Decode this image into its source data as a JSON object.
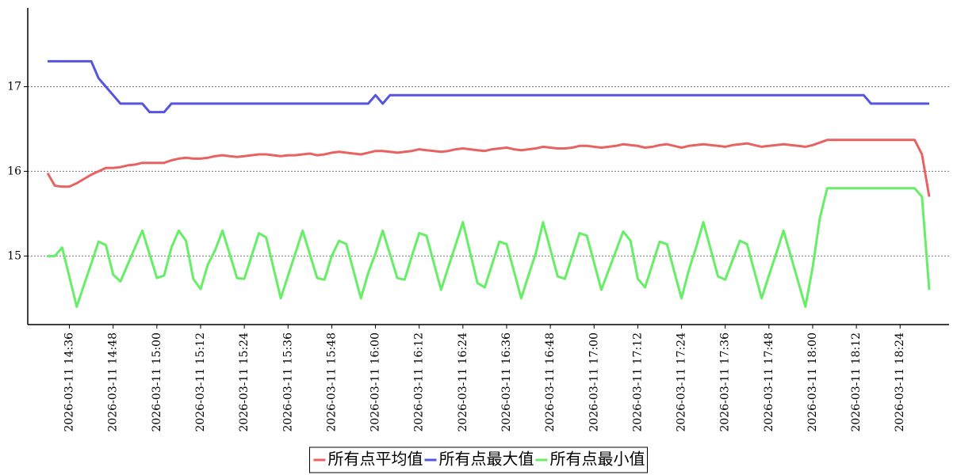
{
  "chart_data": {
    "type": "line",
    "x": [
      "2026-03-11 14:30",
      "2026-03-11 14:32",
      "2026-03-11 14:34",
      "2026-03-11 14:36",
      "2026-03-11 14:38",
      "2026-03-11 14:40",
      "2026-03-11 14:42",
      "2026-03-11 14:44",
      "2026-03-11 14:46",
      "2026-03-11 14:48",
      "2026-03-11 14:50",
      "2026-03-11 14:52",
      "2026-03-11 14:54",
      "2026-03-11 14:56",
      "2026-03-11 14:58",
      "2026-03-11 15:00",
      "2026-03-11 15:02",
      "2026-03-11 15:04",
      "2026-03-11 15:06",
      "2026-03-11 15:08",
      "2026-03-11 15:10",
      "2026-03-11 15:12",
      "2026-03-11 15:14",
      "2026-03-11 15:16",
      "2026-03-11 15:18",
      "2026-03-11 15:20",
      "2026-03-11 15:22",
      "2026-03-11 15:24",
      "2026-03-11 15:26",
      "2026-03-11 15:28",
      "2026-03-11 15:30",
      "2026-03-11 15:32",
      "2026-03-11 15:34",
      "2026-03-11 15:36",
      "2026-03-11 15:38",
      "2026-03-11 15:40",
      "2026-03-11 15:42",
      "2026-03-11 15:44",
      "2026-03-11 15:46",
      "2026-03-11 15:48",
      "2026-03-11 15:50",
      "2026-03-11 15:52",
      "2026-03-11 15:54",
      "2026-03-11 15:56",
      "2026-03-11 15:58",
      "2026-03-11 16:00",
      "2026-03-11 16:02",
      "2026-03-11 16:04",
      "2026-03-11 16:06",
      "2026-03-11 16:08",
      "2026-03-11 16:10",
      "2026-03-11 16:12",
      "2026-03-11 16:14",
      "2026-03-11 16:16",
      "2026-03-11 16:18",
      "2026-03-11 16:20",
      "2026-03-11 16:22",
      "2026-03-11 16:24",
      "2026-03-11 16:26",
      "2026-03-11 16:28",
      "2026-03-11 16:30",
      "2026-03-11 16:32",
      "2026-03-11 16:34",
      "2026-03-11 16:36",
      "2026-03-11 16:38",
      "2026-03-11 16:40",
      "2026-03-11 16:42",
      "2026-03-11 16:44",
      "2026-03-11 16:46",
      "2026-03-11 16:48",
      "2026-03-11 16:50",
      "2026-03-11 16:52",
      "2026-03-11 16:54",
      "2026-03-11 16:56",
      "2026-03-11 16:58",
      "2026-03-11 17:00",
      "2026-03-11 17:02",
      "2026-03-11 17:04",
      "2026-03-11 17:06",
      "2026-03-11 17:08",
      "2026-03-11 17:10",
      "2026-03-11 17:12",
      "2026-03-11 17:14",
      "2026-03-11 17:16",
      "2026-03-11 17:18",
      "2026-03-11 17:20",
      "2026-03-11 17:22",
      "2026-03-11 17:24",
      "2026-03-11 17:26",
      "2026-03-11 17:28",
      "2026-03-11 17:30",
      "2026-03-11 17:32",
      "2026-03-11 17:34",
      "2026-03-11 17:36",
      "2026-03-11 17:38",
      "2026-03-11 17:40",
      "2026-03-11 17:42",
      "2026-03-11 17:44",
      "2026-03-11 17:46",
      "2026-03-11 17:48",
      "2026-03-11 17:50",
      "2026-03-11 17:52",
      "2026-03-11 17:54",
      "2026-03-11 17:56",
      "2026-03-11 17:58",
      "2026-03-11 18:00",
      "2026-03-11 18:02",
      "2026-03-11 18:04",
      "2026-03-11 18:06",
      "2026-03-11 18:08",
      "2026-03-11 18:10",
      "2026-03-11 18:12",
      "2026-03-11 18:14",
      "2026-03-11 18:16",
      "2026-03-11 18:18",
      "2026-03-11 18:20",
      "2026-03-11 18:22",
      "2026-03-11 18:24",
      "2026-03-11 18:26",
      "2026-03-11 18:28",
      "2026-03-11 18:30",
      "2026-03-11 18:32"
    ],
    "xticks": [
      "2026-03-11 14:36",
      "2026-03-11 14:48",
      "2026-03-11 15:00",
      "2026-03-11 15:12",
      "2026-03-11 15:24",
      "2026-03-11 15:36",
      "2026-03-11 15:48",
      "2026-03-11 16:00",
      "2026-03-11 16:12",
      "2026-03-11 16:24",
      "2026-03-11 16:36",
      "2026-03-11 16:48",
      "2026-03-11 17:00",
      "2026-03-11 17:12",
      "2026-03-11 17:24",
      "2026-03-11 17:36",
      "2026-03-11 17:48",
      "2026-03-11 18:00",
      "2026-03-11 18:12",
      "2026-03-11 18:24"
    ],
    "series": [
      {
        "name": "所有点平均值",
        "color": "#e86262",
        "values": [
          15.98,
          15.83,
          15.82,
          15.82,
          15.86,
          15.91,
          15.96,
          16.0,
          16.04,
          16.04,
          16.05,
          16.07,
          16.08,
          16.1,
          16.1,
          16.1,
          16.1,
          16.13,
          16.15,
          16.16,
          16.15,
          16.15,
          16.16,
          16.18,
          16.19,
          16.18,
          16.17,
          16.18,
          16.19,
          16.2,
          16.2,
          16.19,
          16.18,
          16.19,
          16.19,
          16.2,
          16.21,
          16.19,
          16.2,
          16.22,
          16.23,
          16.22,
          16.21,
          16.2,
          16.22,
          16.24,
          16.24,
          16.23,
          16.22,
          16.23,
          16.24,
          16.26,
          16.25,
          16.24,
          16.23,
          16.24,
          16.26,
          16.27,
          16.26,
          16.25,
          16.24,
          16.26,
          16.27,
          16.28,
          16.26,
          16.25,
          16.26,
          16.27,
          16.29,
          16.28,
          16.27,
          16.27,
          16.28,
          16.3,
          16.3,
          16.29,
          16.28,
          16.29,
          16.3,
          16.32,
          16.31,
          16.3,
          16.28,
          16.29,
          16.31,
          16.32,
          16.3,
          16.28,
          16.3,
          16.31,
          16.32,
          16.31,
          16.3,
          16.29,
          16.31,
          16.32,
          16.33,
          16.31,
          16.29,
          16.3,
          16.31,
          16.32,
          16.31,
          16.3,
          16.29,
          16.31,
          16.34,
          16.37,
          16.37,
          16.37,
          16.37,
          16.37,
          16.37,
          16.37,
          16.37,
          16.37,
          16.37,
          16.37,
          16.37,
          16.37,
          16.2,
          15.7
        ]
      },
      {
        "name": "所有点最大值",
        "color": "#5555dd",
        "values": [
          17.3,
          17.3,
          17.3,
          17.3,
          17.3,
          17.3,
          17.3,
          17.1,
          17.0,
          16.9,
          16.8,
          16.8,
          16.8,
          16.8,
          16.7,
          16.7,
          16.7,
          16.8,
          16.8,
          16.8,
          16.8,
          16.8,
          16.8,
          16.8,
          16.8,
          16.8,
          16.8,
          16.8,
          16.8,
          16.8,
          16.8,
          16.8,
          16.8,
          16.8,
          16.8,
          16.8,
          16.8,
          16.8,
          16.8,
          16.8,
          16.8,
          16.8,
          16.8,
          16.8,
          16.8,
          16.9,
          16.8,
          16.9,
          16.9,
          16.9,
          16.9,
          16.9,
          16.9,
          16.9,
          16.9,
          16.9,
          16.9,
          16.9,
          16.9,
          16.9,
          16.9,
          16.9,
          16.9,
          16.9,
          16.9,
          16.9,
          16.9,
          16.9,
          16.9,
          16.9,
          16.9,
          16.9,
          16.9,
          16.9,
          16.9,
          16.9,
          16.9,
          16.9,
          16.9,
          16.9,
          16.9,
          16.9,
          16.9,
          16.9,
          16.9,
          16.9,
          16.9,
          16.9,
          16.9,
          16.9,
          16.9,
          16.9,
          16.9,
          16.9,
          16.9,
          16.9,
          16.9,
          16.9,
          16.9,
          16.9,
          16.9,
          16.9,
          16.9,
          16.9,
          16.9,
          16.9,
          16.9,
          16.9,
          16.9,
          16.9,
          16.9,
          16.9,
          16.9,
          16.8,
          16.8,
          16.8,
          16.8,
          16.8,
          16.8,
          16.8,
          16.8,
          16.8
        ]
      },
      {
        "name": "所有点最小值",
        "color": "#66ee66",
        "values": [
          15.0,
          15.0,
          15.1,
          14.75,
          14.4,
          14.66,
          14.91,
          15.17,
          15.13,
          14.78,
          14.7,
          14.9,
          15.1,
          15.3,
          15.02,
          14.74,
          14.77,
          15.1,
          15.3,
          15.18,
          14.73,
          14.61,
          14.9,
          15.07,
          15.3,
          15.02,
          14.74,
          14.73,
          15.0,
          15.27,
          15.22,
          14.86,
          14.5,
          14.77,
          15.03,
          15.3,
          15.02,
          14.74,
          14.72,
          15.0,
          15.18,
          15.14,
          14.82,
          14.5,
          14.8,
          15.03,
          15.3,
          15.02,
          14.74,
          14.72,
          15.0,
          15.27,
          15.24,
          14.92,
          14.6,
          14.87,
          15.13,
          15.4,
          15.04,
          14.68,
          14.63,
          14.9,
          15.17,
          15.14,
          14.82,
          14.5,
          14.77,
          15.03,
          15.4,
          15.08,
          14.76,
          14.73,
          15.0,
          15.27,
          15.24,
          14.92,
          14.6,
          14.83,
          15.06,
          15.29,
          15.18,
          14.73,
          14.63,
          14.9,
          15.17,
          15.14,
          14.82,
          14.5,
          14.83,
          15.1,
          15.4,
          15.08,
          14.76,
          14.72,
          14.95,
          15.18,
          15.14,
          14.82,
          14.5,
          14.77,
          15.03,
          15.3,
          15.0,
          14.7,
          14.4,
          14.87,
          15.45,
          15.8,
          15.8,
          15.8,
          15.8,
          15.8,
          15.8,
          15.8,
          15.8,
          15.8,
          15.8,
          15.8,
          15.8,
          15.8,
          15.7,
          14.6
        ]
      }
    ],
    "ylim": [
      14.19,
      17.93
    ],
    "yticks": [
      15,
      16,
      17
    ],
    "grid": true,
    "legend": "bottom"
  }
}
